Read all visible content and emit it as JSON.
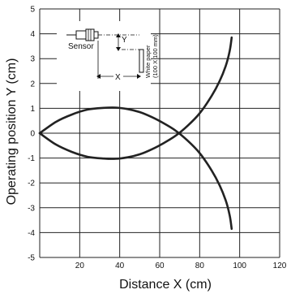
{
  "chart_data": {
    "type": "line",
    "xlabel": "Distance X (cm)",
    "ylabel": "Operating position Y  (cm)",
    "xlim": [
      0,
      120
    ],
    "ylim": [
      -5,
      5
    ],
    "x_ticks": [
      20,
      40,
      60,
      80,
      100,
      120
    ],
    "y_ticks": [
      5,
      4,
      3,
      2,
      1,
      0,
      -1,
      -2,
      -3,
      -4,
      -5
    ],
    "grid": true,
    "series": [
      {
        "x": [
          0,
          8,
          16,
          24,
          32,
          38,
          44,
          50,
          56,
          62,
          68,
          74,
          80,
          86,
          90,
          93,
          95,
          96
        ],
        "y": [
          0,
          0.45,
          0.75,
          0.95,
          1.02,
          1.03,
          0.97,
          0.85,
          0.65,
          0.4,
          0.1,
          -0.3,
          -0.8,
          -1.5,
          -2.1,
          -2.7,
          -3.3,
          -3.85
        ]
      },
      {
        "x": [
          0,
          8,
          16,
          24,
          32,
          38,
          44,
          50,
          56,
          62,
          68,
          74,
          80,
          86,
          90,
          93,
          95,
          96
        ],
        "y": [
          0,
          -0.45,
          -0.75,
          -0.95,
          -1.02,
          -1.03,
          -0.97,
          -0.85,
          -0.65,
          -0.4,
          -0.1,
          0.3,
          0.8,
          1.5,
          2.1,
          2.7,
          3.3,
          3.85
        ]
      }
    ],
    "inset": {
      "sensor_label": "Sensor",
      "y_label": "Y",
      "x_label": "X",
      "paper_label_line1": "White paper",
      "paper_label_line2": "(100 X 100 mm)"
    }
  }
}
